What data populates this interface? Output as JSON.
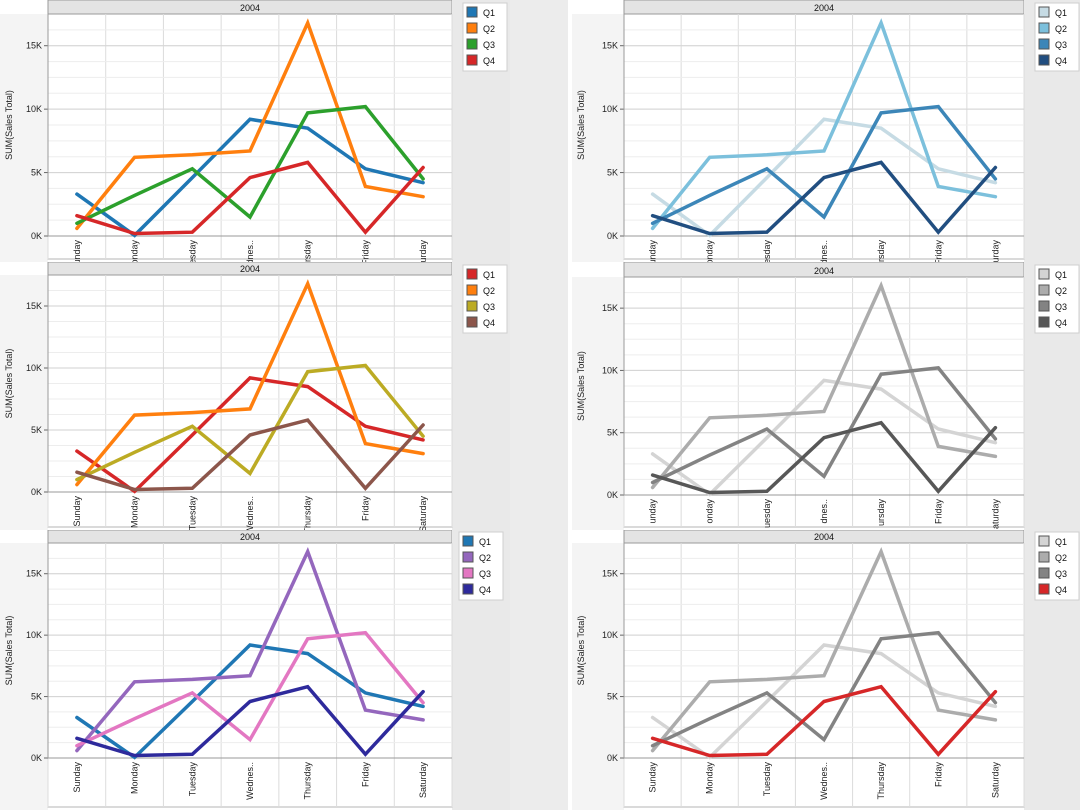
{
  "chart_data": [
    {
      "type": "line",
      "header": "2004",
      "ylabel": "SUM(Sales Total)",
      "ylim": [
        0,
        17500
      ],
      "yticks": [
        0,
        5000,
        10000,
        15000
      ],
      "ytick_labels": [
        "0K",
        "5K",
        "10K",
        "15K"
      ],
      "categories": [
        "unday",
        "Monday",
        "Tuesday",
        "Wednes..",
        "Thursday",
        "Friday",
        "Saturday"
      ],
      "grid": true,
      "legend": "right",
      "series": [
        {
          "name": "Q1",
          "color": "#1f77b4",
          "values": [
            3300,
            50,
            4600,
            9200,
            8500,
            5300,
            4200
          ]
        },
        {
          "name": "Q2",
          "color": "#ff7f0e",
          "values": [
            600,
            6200,
            6400,
            6700,
            16800,
            3900,
            3100
          ]
        },
        {
          "name": "Q3",
          "color": "#2ca02c",
          "values": [
            1000,
            3200,
            5300,
            1500,
            9700,
            10200,
            4500
          ]
        },
        {
          "name": "Q4",
          "color": "#d62728",
          "values": [
            1600,
            200,
            300,
            4600,
            5800,
            300,
            5400
          ]
        }
      ]
    },
    {
      "type": "line",
      "header": "2004",
      "ylabel": "SUM(Sales Total)",
      "ylim": [
        0,
        17500
      ],
      "yticks": [
        0,
        5000,
        10000,
        15000
      ],
      "ytick_labels": [
        "0K",
        "5K",
        "10K",
        "15K"
      ],
      "categories": [
        "unday",
        "onday",
        "uesday",
        "dnes..",
        "ursday",
        "Friday",
        "aturday"
      ],
      "grid": true,
      "legend": "right",
      "series": [
        {
          "name": "Q1",
          "color": "#c6dbe4",
          "values": [
            3300,
            50,
            4600,
            9200,
            8500,
            5300,
            4200
          ]
        },
        {
          "name": "Q2",
          "color": "#7cc0dc",
          "values": [
            600,
            6200,
            6400,
            6700,
            16800,
            3900,
            3100
          ]
        },
        {
          "name": "Q3",
          "color": "#3c86b8",
          "values": [
            1000,
            3200,
            5300,
            1500,
            9700,
            10200,
            4500
          ]
        },
        {
          "name": "Q4",
          "color": "#214e80",
          "values": [
            1600,
            200,
            300,
            4600,
            5800,
            300,
            5400
          ]
        }
      ]
    },
    {
      "type": "line",
      "header": "2004",
      "ylabel": "SUM(Sales Total)",
      "ylim": [
        0,
        17500
      ],
      "yticks": [
        0,
        5000,
        10000,
        15000
      ],
      "ytick_labels": [
        "0K",
        "5K",
        "10K",
        "15K"
      ],
      "categories": [
        "Sunday",
        "Monday",
        "Tuesday",
        "Wednes..",
        "Thursday",
        "Friday",
        "Saturday"
      ],
      "grid": true,
      "legend": "right",
      "series": [
        {
          "name": "Q1",
          "color": "#d62728",
          "values": [
            3300,
            50,
            4600,
            9200,
            8500,
            5300,
            4200
          ]
        },
        {
          "name": "Q2",
          "color": "#ff7f0e",
          "values": [
            600,
            6200,
            6400,
            6700,
            16800,
            3900,
            3100
          ]
        },
        {
          "name": "Q3",
          "color": "#bcab24",
          "values": [
            1000,
            3200,
            5300,
            1500,
            9700,
            10200,
            4500
          ]
        },
        {
          "name": "Q4",
          "color": "#8c564b",
          "values": [
            1600,
            200,
            300,
            4600,
            5800,
            300,
            5400
          ]
        }
      ]
    },
    {
      "type": "line",
      "header": "2004",
      "ylabel": "SUM(Sales Total)",
      "ylim": [
        0,
        17500
      ],
      "yticks": [
        0,
        5000,
        10000,
        15000
      ],
      "ytick_labels": [
        "0K",
        "5K",
        "10K",
        "15K"
      ],
      "categories": [
        "unday",
        "onday",
        "uesday",
        "dnes..",
        "ursday",
        "Friday",
        "aturday"
      ],
      "grid": true,
      "legend": "right",
      "series": [
        {
          "name": "Q1",
          "color": "#d4d4d4",
          "values": [
            3300,
            50,
            4600,
            9200,
            8500,
            5300,
            4200
          ]
        },
        {
          "name": "Q2",
          "color": "#acacac",
          "values": [
            600,
            6200,
            6400,
            6700,
            16800,
            3900,
            3100
          ]
        },
        {
          "name": "Q3",
          "color": "#838383",
          "values": [
            1000,
            3200,
            5300,
            1500,
            9700,
            10200,
            4500
          ]
        },
        {
          "name": "Q4",
          "color": "#575757",
          "values": [
            1600,
            200,
            300,
            4600,
            5800,
            300,
            5400
          ]
        }
      ]
    },
    {
      "type": "line",
      "header": "2004",
      "ylabel": "SUM(Sales Total)",
      "ylim": [
        0,
        17500
      ],
      "yticks": [
        0,
        5000,
        10000,
        15000
      ],
      "ytick_labels": [
        "0K",
        "5K",
        "10K",
        "15K"
      ],
      "categories": [
        "Sunday",
        "Monday",
        "Tuesday",
        "Wednes..",
        "Thursday",
        "Friday",
        "Saturday"
      ],
      "grid": true,
      "legend": "right",
      "series": [
        {
          "name": "Q1",
          "color": "#1f77b4",
          "values": [
            3300,
            50,
            4600,
            9200,
            8500,
            5300,
            4200
          ]
        },
        {
          "name": "Q2",
          "color": "#9467bd",
          "values": [
            600,
            6200,
            6400,
            6700,
            16800,
            3900,
            3100
          ]
        },
        {
          "name": "Q3",
          "color": "#e377c2",
          "values": [
            1000,
            3200,
            5300,
            1500,
            9700,
            10200,
            4500
          ]
        },
        {
          "name": "Q4",
          "color": "#2e2a9c",
          "values": [
            1600,
            200,
            300,
            4600,
            5800,
            300,
            5400
          ]
        }
      ]
    },
    {
      "type": "line",
      "header": "2004",
      "ylabel": "SUM(Sales Total)",
      "ylim": [
        0,
        17500
      ],
      "yticks": [
        0,
        5000,
        10000,
        15000
      ],
      "ytick_labels": [
        "0K",
        "5K",
        "10K",
        "15K"
      ],
      "categories": [
        "Sunday",
        "Monday",
        "Tuesday",
        "Wednes..",
        "Thursday",
        "Friday",
        "Saturday"
      ],
      "grid": true,
      "legend": "right",
      "series": [
        {
          "name": "Q1",
          "color": "#d4d4d4",
          "values": [
            3300,
            50,
            4600,
            9200,
            8500,
            5300,
            4200
          ]
        },
        {
          "name": "Q2",
          "color": "#acacac",
          "values": [
            600,
            6200,
            6400,
            6700,
            16800,
            3900,
            3100
          ]
        },
        {
          "name": "Q3",
          "color": "#838383",
          "values": [
            1000,
            3200,
            5300,
            1500,
            9700,
            10200,
            4500
          ]
        },
        {
          "name": "Q4",
          "color": "#d62728",
          "values": [
            1600,
            200,
            300,
            4600,
            5800,
            300,
            5400
          ]
        }
      ]
    }
  ]
}
